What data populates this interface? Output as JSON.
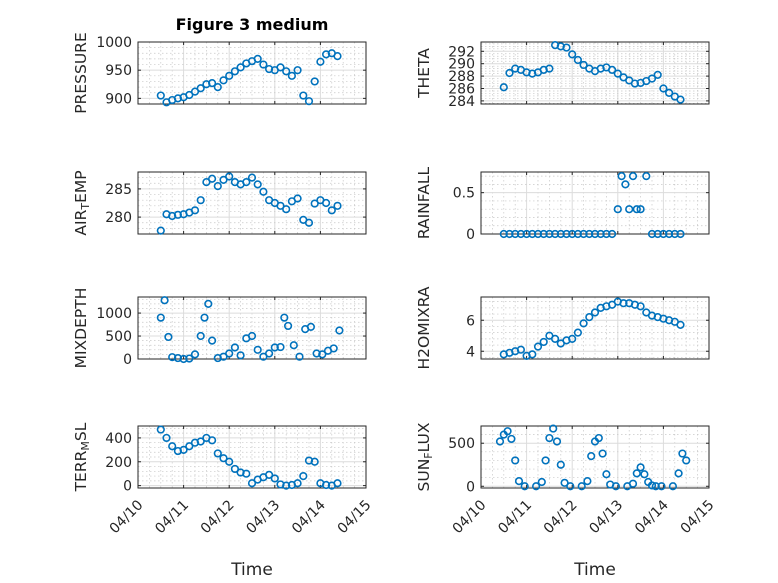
{
  "figure": {
    "title": "Figure 3 medium",
    "xlabel": "Time",
    "marker_color": "#0072BD",
    "background": "#ffffff"
  },
  "chart_data": [
    {
      "type": "scatter",
      "ylabel": "PRESSURE",
      "xlim": [
        "04/10",
        "04/15"
      ],
      "ylim": [
        890,
        1000
      ],
      "yticks": [
        "900",
        "950",
        "1000"
      ],
      "grid": true,
      "x": [
        "04/10 12:00",
        "04/10 15:00",
        "04/10 18:00",
        "04/10 21:00",
        "04/11 00:00",
        "04/11 03:00",
        "04/11 06:00",
        "04/11 09:00",
        "04/11 12:00",
        "04/11 15:00",
        "04/11 18:00",
        "04/11 21:00",
        "04/12 00:00",
        "04/12 03:00",
        "04/12 06:00",
        "04/12 09:00",
        "04/12 12:00",
        "04/12 15:00",
        "04/12 18:00",
        "04/12 21:00",
        "04/13 00:00",
        "04/13 03:00",
        "04/13 06:00",
        "04/13 09:00",
        "04/13 12:00",
        "04/13 15:00",
        "04/13 18:00",
        "04/13 21:00",
        "04/14 00:00",
        "04/14 03:00",
        "04/14 06:00",
        "04/14 09:00"
      ],
      "y": [
        905,
        893,
        897,
        900,
        902,
        906,
        912,
        918,
        925,
        927,
        920,
        932,
        940,
        948,
        955,
        962,
        966,
        970,
        960,
        952,
        950,
        955,
        948,
        940,
        950,
        905,
        895,
        930,
        965,
        978,
        980,
        975
      ]
    },
    {
      "type": "scatter",
      "ylabel": "THETA",
      "xlim": [
        "04/10",
        "04/15"
      ],
      "ylim": [
        283.5,
        293.5
      ],
      "yticks": [
        "284",
        "286",
        "288",
        "290",
        "292"
      ],
      "grid": true,
      "x": [
        "04/10 12:00",
        "04/10 15:00",
        "04/10 18:00",
        "04/10 21:00",
        "04/11 00:00",
        "04/11 03:00",
        "04/11 06:00",
        "04/11 09:00",
        "04/11 12:00",
        "04/11 15:00",
        "04/11 18:00",
        "04/11 21:00",
        "04/12 00:00",
        "04/12 03:00",
        "04/12 06:00",
        "04/12 09:00",
        "04/12 12:00",
        "04/12 15:00",
        "04/12 18:00",
        "04/12 21:00",
        "04/13 00:00",
        "04/13 03:00",
        "04/13 06:00",
        "04/13 09:00",
        "04/13 12:00",
        "04/13 15:00",
        "04/13 18:00",
        "04/13 21:00",
        "04/14 00:00",
        "04/14 03:00",
        "04/14 06:00",
        "04/14 09:00"
      ],
      "y": [
        286.2,
        288.5,
        289.2,
        289.0,
        288.6,
        288.4,
        288.6,
        289.0,
        289.2,
        293.0,
        292.8,
        292.6,
        291.5,
        290.6,
        289.8,
        289.2,
        288.8,
        289.2,
        289.4,
        289.0,
        288.4,
        287.8,
        287.3,
        286.8,
        286.9,
        287.2,
        287.6,
        288.2,
        286.0,
        285.3,
        284.7,
        284.2
      ]
    },
    {
      "type": "scatter",
      "ylabel": "AIR_TEMP",
      "ylabel_parts": [
        "AIR",
        "T",
        "EMP"
      ],
      "xlim": [
        "04/10",
        "04/15"
      ],
      "ylim": [
        277,
        288
      ],
      "yticks": [
        "280",
        "285"
      ],
      "grid": true,
      "x": [
        "04/10 12:00",
        "04/10 15:00",
        "04/10 18:00",
        "04/10 21:00",
        "04/11 00:00",
        "04/11 03:00",
        "04/11 06:00",
        "04/11 09:00",
        "04/11 12:00",
        "04/11 15:00",
        "04/11 18:00",
        "04/11 21:00",
        "04/12 00:00",
        "04/12 03:00",
        "04/12 06:00",
        "04/12 09:00",
        "04/12 12:00",
        "04/12 15:00",
        "04/12 18:00",
        "04/12 21:00",
        "04/13 00:00",
        "04/13 03:00",
        "04/13 06:00",
        "04/13 09:00",
        "04/13 12:00",
        "04/13 15:00",
        "04/13 18:00",
        "04/13 21:00",
        "04/14 00:00",
        "04/14 03:00",
        "04/14 06:00",
        "04/14 09:00"
      ],
      "y": [
        277.6,
        280.5,
        280.2,
        280.4,
        280.5,
        280.8,
        281.2,
        283.0,
        286.2,
        286.8,
        285.5,
        286.6,
        287.2,
        286.2,
        285.8,
        286.2,
        287.0,
        285.8,
        284.5,
        283.0,
        282.5,
        282.0,
        281.4,
        282.8,
        283.3,
        279.5,
        279.0,
        282.4,
        283.0,
        282.5,
        281.2,
        282.0
      ]
    },
    {
      "type": "scatter",
      "ylabel": "RAINFALL",
      "xlim": [
        "04/10",
        "04/15"
      ],
      "ylim": [
        0,
        0.75
      ],
      "yticks": [
        "0",
        "0.5"
      ],
      "grid": true,
      "x": [
        "04/10 12:00",
        "04/10 15:00",
        "04/10 18:00",
        "04/10 21:00",
        "04/11 00:00",
        "04/11 03:00",
        "04/11 06:00",
        "04/11 09:00",
        "04/11 12:00",
        "04/11 15:00",
        "04/11 18:00",
        "04/11 21:00",
        "04/12 00:00",
        "04/12 03:00",
        "04/12 06:00",
        "04/12 09:00",
        "04/12 12:00",
        "04/12 15:00",
        "04/12 18:00",
        "04/12 21:00",
        "04/13 00:00",
        "04/13 02:00",
        "04/13 04:00",
        "04/13 06:00",
        "04/13 08:00",
        "04/13 10:00",
        "04/13 12:00",
        "04/13 15:00",
        "04/13 18:00",
        "04/13 21:00",
        "04/14 00:00",
        "04/14 03:00",
        "04/14 06:00",
        "04/14 09:00"
      ],
      "y": [
        0,
        0,
        0,
        0,
        0,
        0,
        0,
        0,
        0,
        0,
        0,
        0,
        0,
        0,
        0,
        0,
        0,
        0,
        0,
        0,
        0.3,
        0.7,
        0.6,
        0.3,
        0.7,
        0.3,
        0.3,
        0.7,
        0,
        0,
        0,
        0,
        0,
        0
      ]
    },
    {
      "type": "scatter",
      "ylabel": "MIXDEPTH",
      "xlim": [
        "04/10",
        "04/15"
      ],
      "ylim": [
        0,
        1350
      ],
      "yticks": [
        "0",
        "500",
        "1000"
      ],
      "grid": true,
      "x": [
        "04/10 12:00",
        "04/10 14:00",
        "04/10 16:00",
        "04/10 18:00",
        "04/10 21:00",
        "04/11 00:00",
        "04/11 03:00",
        "04/11 06:00",
        "04/11 09:00",
        "04/11 11:00",
        "04/11 13:00",
        "04/11 15:00",
        "04/11 18:00",
        "04/11 21:00",
        "04/12 00:00",
        "04/12 03:00",
        "04/12 06:00",
        "04/12 09:00",
        "04/12 12:00",
        "04/12 15:00",
        "04/12 18:00",
        "04/12 21:00",
        "04/13 00:00",
        "04/13 03:00",
        "04/13 05:00",
        "04/13 07:00",
        "04/13 10:00",
        "04/13 13:00",
        "04/13 16:00",
        "04/13 19:00",
        "04/13 22:00",
        "04/14 01:00",
        "04/14 04:00",
        "04/14 07:00",
        "04/14 10:00"
      ],
      "y": [
        900,
        1280,
        480,
        40,
        20,
        0,
        10,
        100,
        500,
        900,
        1200,
        400,
        20,
        50,
        120,
        250,
        80,
        450,
        500,
        200,
        50,
        120,
        250,
        260,
        900,
        720,
        300,
        50,
        650,
        700,
        120,
        100,
        180,
        230,
        620
      ]
    },
    {
      "type": "scatter",
      "ylabel": "H2OMIXRA",
      "xlim": [
        "04/10",
        "04/15"
      ],
      "ylim": [
        3.5,
        7.5
      ],
      "yticks": [
        "4",
        "6"
      ],
      "grid": true,
      "x": [
        "04/10 12:00",
        "04/10 15:00",
        "04/10 18:00",
        "04/10 21:00",
        "04/11 00:00",
        "04/11 03:00",
        "04/11 06:00",
        "04/11 09:00",
        "04/11 12:00",
        "04/11 15:00",
        "04/11 18:00",
        "04/11 21:00",
        "04/12 00:00",
        "04/12 03:00",
        "04/12 06:00",
        "04/12 09:00",
        "04/12 12:00",
        "04/12 15:00",
        "04/12 18:00",
        "04/12 21:00",
        "04/13 00:00",
        "04/13 03:00",
        "04/13 06:00",
        "04/13 09:00",
        "04/13 12:00",
        "04/13 15:00",
        "04/13 18:00",
        "04/13 21:00",
        "04/14 00:00",
        "04/14 03:00",
        "04/14 06:00",
        "04/14 09:00"
      ],
      "y": [
        3.8,
        3.9,
        4.0,
        4.1,
        3.7,
        3.8,
        4.3,
        4.6,
        5.0,
        4.8,
        4.5,
        4.7,
        4.8,
        5.2,
        5.8,
        6.2,
        6.5,
        6.8,
        6.9,
        7.0,
        7.2,
        7.1,
        7.1,
        7.0,
        6.9,
        6.5,
        6.3,
        6.2,
        6.1,
        6.0,
        5.9,
        5.7
      ]
    },
    {
      "type": "scatter",
      "ylabel": "TERR_MSL",
      "ylabel_parts": [
        "TERR",
        "M",
        "SL"
      ],
      "xlim": [
        "04/10",
        "04/15"
      ],
      "ylim": [
        -20,
        500
      ],
      "yticks": [
        "0",
        "200",
        "400"
      ],
      "grid": true,
      "xticks": [
        "04/10",
        "04/11",
        "04/12",
        "04/13",
        "04/14",
        "04/15"
      ],
      "x": [
        "04/10 12:00",
        "04/10 15:00",
        "04/10 18:00",
        "04/10 21:00",
        "04/11 00:00",
        "04/11 03:00",
        "04/11 06:00",
        "04/11 09:00",
        "04/11 12:00",
        "04/11 15:00",
        "04/11 18:00",
        "04/11 21:00",
        "04/12 00:00",
        "04/12 03:00",
        "04/12 06:00",
        "04/12 09:00",
        "04/12 12:00",
        "04/12 15:00",
        "04/12 18:00",
        "04/12 21:00",
        "04/13 00:00",
        "04/13 03:00",
        "04/13 06:00",
        "04/13 09:00",
        "04/13 12:00",
        "04/13 15:00",
        "04/13 18:00",
        "04/13 21:00",
        "04/14 00:00",
        "04/14 03:00",
        "04/14 06:00",
        "04/14 09:00"
      ],
      "y": [
        470,
        400,
        330,
        290,
        300,
        330,
        360,
        370,
        400,
        380,
        270,
        230,
        200,
        140,
        110,
        100,
        20,
        50,
        70,
        90,
        60,
        10,
        0,
        5,
        20,
        80,
        210,
        200,
        20,
        5,
        0,
        20
      ]
    },
    {
      "type": "scatter",
      "ylabel": "SUN_FLUX",
      "ylabel_parts": [
        "SUN",
        "F",
        "LUX"
      ],
      "xlim": [
        "04/10",
        "04/15"
      ],
      "ylim": [
        -20,
        700
      ],
      "yticks": [
        "0",
        "500"
      ],
      "grid": true,
      "xticks": [
        "04/10",
        "04/11",
        "04/12",
        "04/13",
        "04/14",
        "04/15"
      ],
      "x": [
        "04/10 10:00",
        "04/10 12:00",
        "04/10 14:00",
        "04/10 16:00",
        "04/10 18:00",
        "04/10 20:00",
        "04/10 23:00",
        "04/11 05:00",
        "04/11 08:00",
        "04/11 10:00",
        "04/11 12:00",
        "04/11 14:00",
        "04/11 16:00",
        "04/11 18:00",
        "04/11 20:00",
        "04/11 23:00",
        "04/12 05:00",
        "04/12 08:00",
        "04/12 10:00",
        "04/12 12:00",
        "04/12 14:00",
        "04/12 16:00",
        "04/12 18:00",
        "04/12 20:00",
        "04/12 23:00",
        "04/13 05:00",
        "04/13 08:00",
        "04/13 10:00",
        "04/13 12:00",
        "04/13 14:00",
        "04/13 16:00",
        "04/13 18:00",
        "04/13 20:00",
        "04/13 23:00",
        "04/14 05:00",
        "04/14 08:00",
        "04/14 10:00",
        "04/14 12:00"
      ],
      "y": [
        520,
        600,
        640,
        550,
        300,
        60,
        0,
        0,
        50,
        300,
        560,
        670,
        520,
        250,
        40,
        0,
        0,
        60,
        350,
        520,
        560,
        380,
        140,
        20,
        0,
        0,
        30,
        150,
        220,
        140,
        50,
        10,
        0,
        0,
        0,
        150,
        380,
        300
      ]
    }
  ]
}
